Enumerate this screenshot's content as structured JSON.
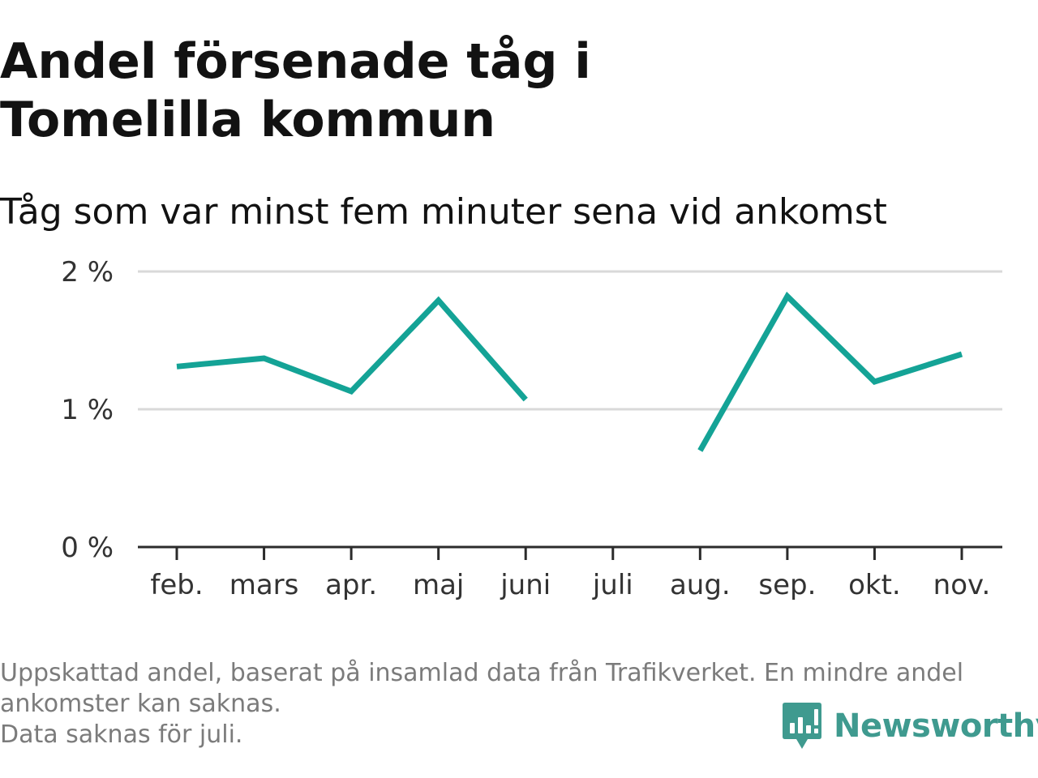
{
  "title": "Andel försenade tåg i Tomelilla kommun",
  "subtitle": "Tåg som var minst fem minuter sena vid ankomst",
  "footer": {
    "note_line1": "Uppskattad andel, baserat på insamlad data från Trafikverket. En mindre andel ankomster kan saknas.",
    "note_line2": "Data saknas för juli."
  },
  "brand": {
    "name": "Newsworthy",
    "icon": "newsworthy-logo-icon",
    "color": "#3f9a8f"
  },
  "colors": {
    "line": "#14a396",
    "grid": "#d9d9d9",
    "axis": "#2b2b2b"
  },
  "chart_data": {
    "type": "line",
    "categories": [
      "feb.",
      "mars",
      "apr.",
      "maj",
      "juni",
      "juli",
      "aug.",
      "sep.",
      "okt.",
      "nov."
    ],
    "series": [
      {
        "values": [
          1.31,
          1.37,
          1.13,
          1.79,
          1.07,
          null,
          0.7,
          1.82,
          1.2,
          1.4
        ]
      }
    ],
    "y_ticks": [
      {
        "value": 0,
        "label": "0 %"
      },
      {
        "value": 1,
        "label": "1 %"
      },
      {
        "value": 2,
        "label": "2 %"
      }
    ],
    "ylim": [
      0,
      2
    ],
    "grid": true,
    "legend": "none"
  }
}
